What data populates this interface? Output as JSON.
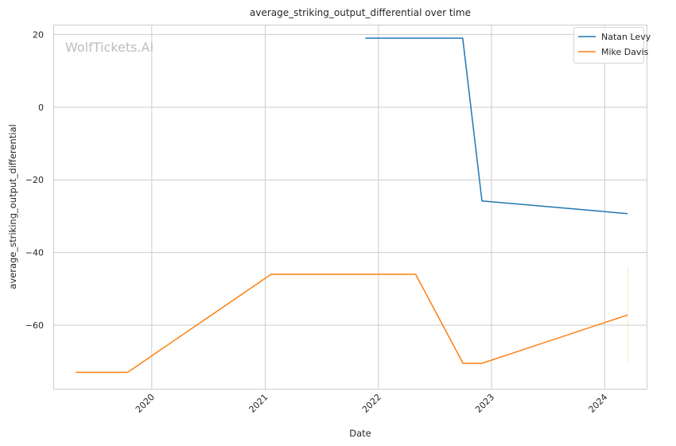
{
  "chart_data": {
    "type": "line",
    "title": "average_striking_output_differential over time",
    "xlabel": "Date",
    "ylabel": "average_striking_output_differential",
    "watermark": "WolfTickets.AI",
    "x_type": "date",
    "xlim": [
      "2019-02-20",
      "2024-05-15"
    ],
    "ylim": [
      -77.5,
      22.5
    ],
    "x_ticks": [
      "2020-01-01",
      "2021-01-01",
      "2022-01-01",
      "2023-01-01",
      "2024-01-01"
    ],
    "x_tick_labels": [
      "2020",
      "2021",
      "2022",
      "2023",
      "2024"
    ],
    "y_ticks": [
      20,
      0,
      -20,
      -40,
      -60
    ],
    "y_tick_labels": [
      "20",
      "0",
      "−20",
      "−40",
      "−60"
    ],
    "grid": true,
    "legend_position": "top-right",
    "series": [
      {
        "name": "Natan Levy",
        "color": "#1f77b4",
        "points": [
          {
            "x": "2021-11-20",
            "y": 19.0
          },
          {
            "x": "2022-09-30",
            "y": 19.0
          },
          {
            "x": "2022-12-01",
            "y": -25.8
          },
          {
            "x": "2024-03-15",
            "y": -29.3
          }
        ]
      },
      {
        "name": "Mike Davis",
        "color": "#ff7f0e",
        "points": [
          {
            "x": "2019-05-01",
            "y": -73.0
          },
          {
            "x": "2019-10-15",
            "y": -73.0
          },
          {
            "x": "2021-01-20",
            "y": -46.0
          },
          {
            "x": "2022-05-01",
            "y": -46.0
          },
          {
            "x": "2022-10-01",
            "y": -70.5
          },
          {
            "x": "2022-12-01",
            "y": -70.5
          },
          {
            "x": "2024-03-15",
            "y": -57.2
          }
        ],
        "error_band": {
          "x": "2024-03-15",
          "low": -70.5,
          "high": -43.8
        }
      }
    ]
  }
}
